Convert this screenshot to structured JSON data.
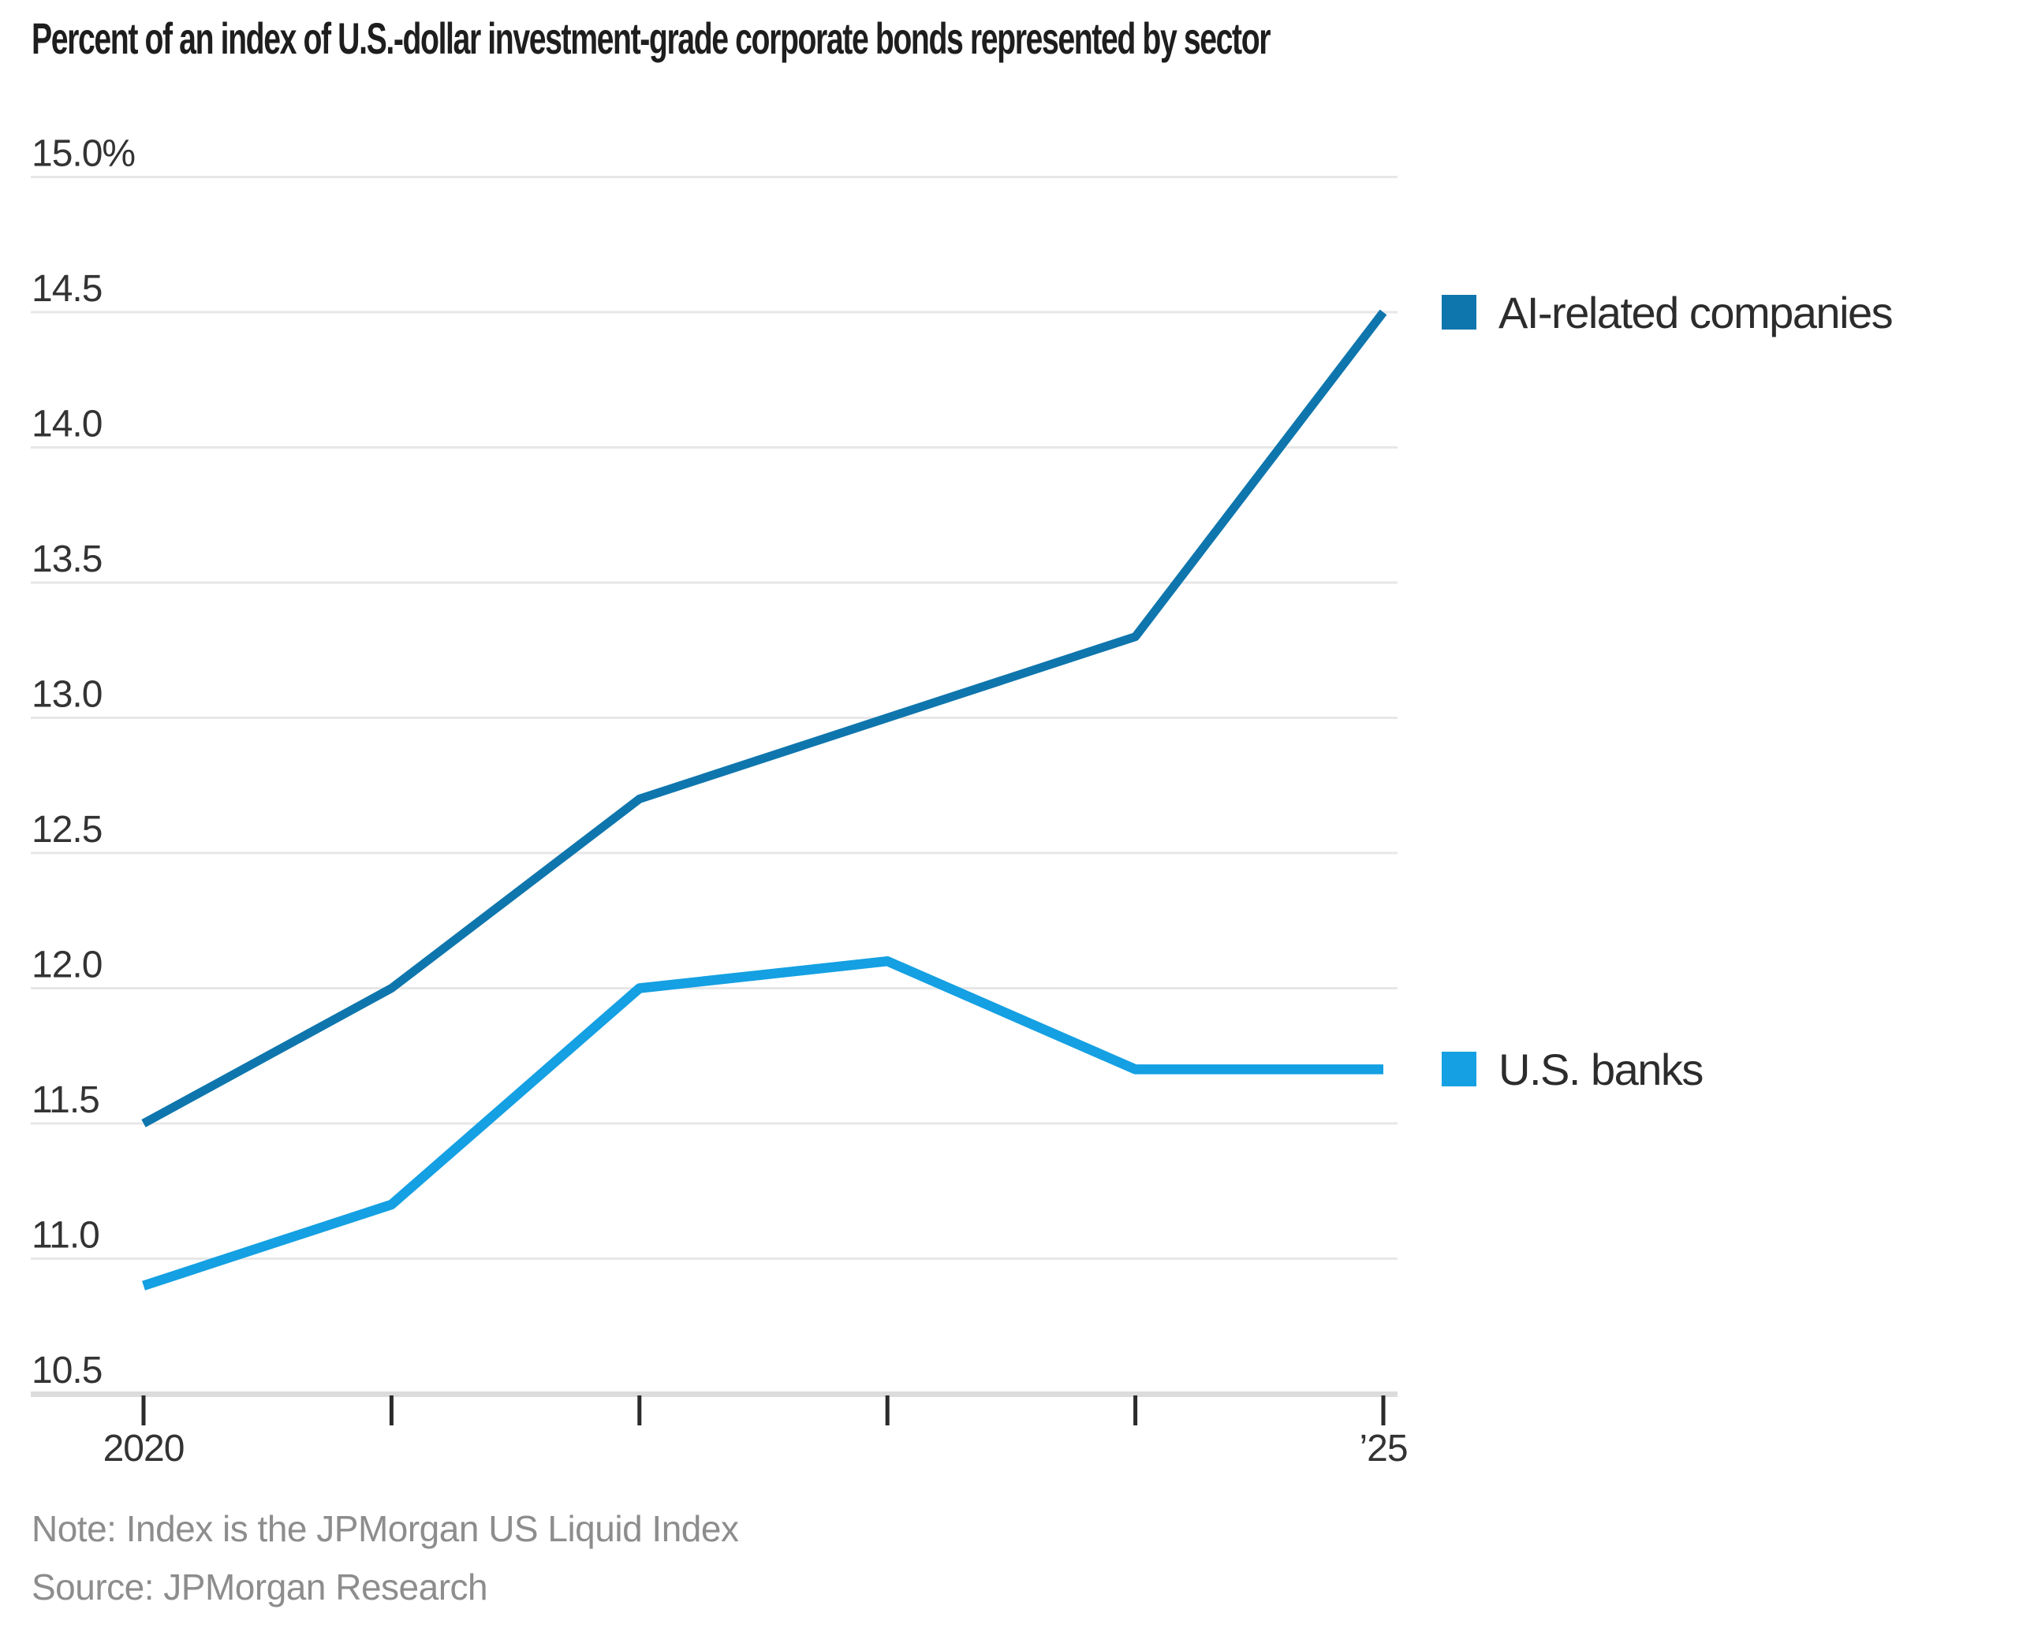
{
  "title": "Percent of an index of U.S.-dollar investment-grade corporate bonds represented by sector",
  "note": "Note: Index is the JPMorgan US Liquid Index",
  "source": "Source: JPMorgan Research",
  "chart_data": {
    "type": "line",
    "x": [
      2020,
      2021,
      2022,
      2023,
      2024,
      2025
    ],
    "x_tick_labels": [
      "2020",
      "",
      "",
      "",
      "",
      "’25"
    ],
    "series": [
      {
        "name": "AI-related companies",
        "color": "#0e76ad",
        "values": [
          11.5,
          12.0,
          12.7,
          13.0,
          13.3,
          14.5
        ]
      },
      {
        "name": "U.S. banks",
        "color": "#14a0e2",
        "values": [
          10.9,
          11.2,
          12.0,
          12.1,
          11.7,
          11.7
        ]
      }
    ],
    "ylim": [
      10.5,
      15.0
    ],
    "ytick_step": 0.5,
    "ytick_labels": [
      "10.5",
      "11.0",
      "11.5",
      "12.0",
      "12.5",
      "13.0",
      "13.5",
      "14.0",
      "14.5",
      "15.0%"
    ],
    "ylabel_suffix_on_top": "%",
    "grid": true,
    "legend_position": "right"
  }
}
